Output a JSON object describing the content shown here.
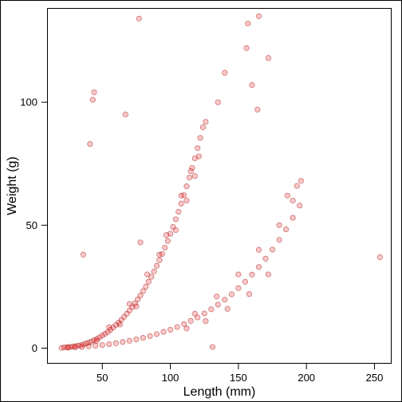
{
  "chart_data": {
    "type": "scatter",
    "title": "",
    "xlabel": "Length (mm)",
    "ylabel": "Weight (g)",
    "xlim": [
      10,
      262
    ],
    "ylim": [
      -6,
      138
    ],
    "x_ticks": [
      50,
      100,
      150,
      200,
      250
    ],
    "y_ticks": [
      0,
      50,
      100
    ],
    "x_tick_labels": [
      "50",
      "100",
      "150",
      "200",
      "250"
    ],
    "y_tick_labels": [
      "0",
      "50",
      "100"
    ],
    "grid": false,
    "legend": "none",
    "colors": {
      "fill": "#ff0000",
      "stroke": "#8b0000"
    },
    "series": [
      {
        "values": [
          [
            22,
            0.3
          ],
          [
            24,
            0.4
          ],
          [
            26,
            0.5
          ],
          [
            28,
            0.6
          ],
          [
            30,
            0.8
          ],
          [
            32,
            1.0
          ],
          [
            34,
            1.2
          ],
          [
            36,
            1.5
          ],
          [
            38,
            1.9
          ],
          [
            40,
            2.3
          ],
          [
            42,
            2.7
          ],
          [
            44,
            3.2
          ],
          [
            46,
            3.8
          ],
          [
            48,
            4.4
          ],
          [
            50,
            5.1
          ],
          [
            52,
            5.8
          ],
          [
            54,
            6.6
          ],
          [
            56,
            7.5
          ],
          [
            58,
            8.4
          ],
          [
            60,
            9.4
          ],
          [
            62,
            10.4
          ],
          [
            64,
            11.5
          ],
          [
            66,
            12.7
          ],
          [
            68,
            14.0
          ],
          [
            70,
            15.3
          ],
          [
            72,
            16.7
          ],
          [
            74,
            18.2
          ],
          [
            76,
            19.8
          ],
          [
            78,
            21.4
          ],
          [
            80,
            23.2
          ],
          [
            82,
            25.0
          ],
          [
            84,
            27.0
          ],
          [
            86,
            29.0
          ],
          [
            88,
            31.2
          ],
          [
            90,
            33.5
          ],
          [
            92,
            35.8
          ],
          [
            94,
            38.3
          ],
          [
            96,
            40.9
          ],
          [
            98,
            43.6
          ],
          [
            100,
            46.5
          ],
          [
            102,
            49.3
          ],
          [
            104,
            52.4
          ],
          [
            106,
            55.5
          ],
          [
            108,
            58.8
          ],
          [
            110,
            62.2
          ],
          [
            112,
            65.8
          ],
          [
            114,
            69.4
          ],
          [
            116,
            73.3
          ],
          [
            118,
            77.2
          ],
          [
            120,
            81.3
          ],
          [
            122,
            85.5
          ],
          [
            124,
            89.8
          ],
          [
            46,
            3.0
          ],
          [
            55,
            8.5
          ],
          [
            63,
            9.6
          ],
          [
            70,
            18.0
          ],
          [
            75,
            17.0
          ],
          [
            83,
            30.0
          ],
          [
            92,
            38.0
          ],
          [
            97,
            46.0
          ],
          [
            104,
            48.0
          ],
          [
            108,
            62.0
          ],
          [
            112,
            60.0
          ],
          [
            115,
            72.0
          ],
          [
            118,
            70.0
          ],
          [
            121,
            78.0
          ],
          [
            126,
            92.0
          ],
          [
            20,
            0.1
          ],
          [
            25,
            0.2
          ],
          [
            30,
            0.35
          ],
          [
            35,
            0.5
          ],
          [
            40,
            0.7
          ],
          [
            45,
            1.0
          ],
          [
            50,
            1.3
          ],
          [
            55,
            1.6
          ],
          [
            60,
            2.0
          ],
          [
            65,
            2.5
          ],
          [
            70,
            3.0
          ],
          [
            75,
            3.6
          ],
          [
            80,
            4.2
          ],
          [
            85,
            4.9
          ],
          [
            90,
            5.7
          ],
          [
            95,
            6.6
          ],
          [
            100,
            7.5
          ],
          [
            105,
            8.6
          ],
          [
            110,
            9.8
          ],
          [
            115,
            11.1
          ],
          [
            120,
            12.5
          ],
          [
            125,
            14.1
          ],
          [
            130,
            15.8
          ],
          [
            135,
            17.7
          ],
          [
            140,
            19.7
          ],
          [
            145,
            21.9
          ],
          [
            150,
            24.4
          ],
          [
            155,
            27.0
          ],
          [
            160,
            29.9
          ],
          [
            165,
            33.0
          ],
          [
            170,
            36.4
          ],
          [
            175,
            40.1
          ],
          [
            180,
            44.0
          ],
          [
            185,
            48.3
          ],
          [
            190,
            53.0
          ],
          [
            195,
            58.0
          ],
          [
            112,
            8.0
          ],
          [
            118,
            14.0
          ],
          [
            126,
            11.0
          ],
          [
            134,
            21.0
          ],
          [
            142,
            16.0
          ],
          [
            150,
            30.0
          ],
          [
            158,
            22.0
          ],
          [
            165,
            40.0
          ],
          [
            172,
            30.0
          ],
          [
            180,
            50.0
          ],
          [
            186,
            62.0
          ],
          [
            190,
            60.0
          ],
          [
            193,
            66.0
          ],
          [
            196,
            68.0
          ],
          [
            36,
            38.0
          ],
          [
            41,
            83.0
          ],
          [
            43,
            101.0
          ],
          [
            44,
            104.0
          ],
          [
            67,
            95.0
          ],
          [
            77,
            134.0
          ],
          [
            78,
            43.0
          ],
          [
            131,
            0.5
          ],
          [
            165,
            135.0
          ],
          [
            157,
            132.0
          ],
          [
            172,
            118.0
          ],
          [
            156,
            122.0
          ],
          [
            160,
            107.0
          ],
          [
            164,
            97.0
          ],
          [
            140,
            112.0
          ],
          [
            135,
            100.0
          ],
          [
            254,
            37.0
          ]
        ]
      }
    ]
  }
}
